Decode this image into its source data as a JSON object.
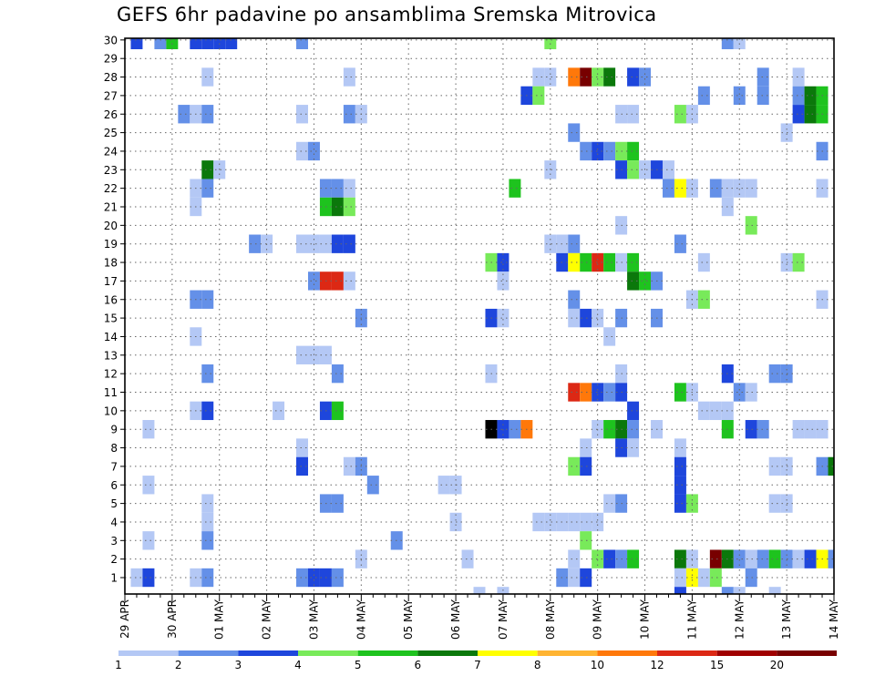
{
  "chart_data": {
    "type": "heatmap",
    "title": "GEFS 6hr padavine po ansamblima Sremska Mitrovica",
    "x_ticks": [
      "29 APR",
      "30 APR",
      "01 MAY",
      "02 MAY",
      "03 MAY",
      "04 MAY",
      "05 MAY",
      "06 MAY",
      "07 MAY",
      "08 MAY",
      "09 MAY",
      "10 MAY",
      "11 MAY",
      "12 MAY",
      "13 MAY",
      "14 MAY"
    ],
    "y_ticks": [
      "1",
      "2",
      "3",
      "4",
      "5",
      "6",
      "7",
      "8",
      "9",
      "10",
      "11",
      "12",
      "13",
      "14",
      "15",
      "16",
      "17",
      "18",
      "19",
      "20",
      "21",
      "22",
      "23",
      "24",
      "25",
      "26",
      "27",
      "28",
      "29",
      "30"
    ],
    "x_unit": "6h step from 29 APR 00Z",
    "xlim": [
      0,
      60
    ],
    "ylim": [
      1,
      30
    ],
    "grid": true,
    "colorbar": {
      "labels": [
        "1",
        "2",
        "3",
        "4",
        "5",
        "6",
        "7",
        "8",
        "10",
        "12",
        "15",
        "20"
      ],
      "colors": [
        "#b4c8f5",
        "#6490e8",
        "#1e46dc",
        "#78ea5a",
        "#1ec31e",
        "#0b780b",
        "#ffff00",
        "#ffb432",
        "#ff780a",
        "#dc2814",
        "#a00000",
        "#780000"
      ]
    },
    "cells": [
      [
        1,
        30,
        3
      ],
      [
        3,
        30,
        2
      ],
      [
        4,
        30,
        5
      ],
      [
        6,
        30,
        3
      ],
      [
        7,
        30,
        3
      ],
      [
        8,
        30,
        3
      ],
      [
        9,
        30,
        3
      ],
      [
        15,
        30,
        2
      ],
      [
        36,
        30,
        4
      ],
      [
        51,
        30,
        2
      ],
      [
        52,
        30,
        1
      ],
      [
        7,
        28,
        1
      ],
      [
        19,
        28,
        1
      ],
      [
        35,
        28,
        1
      ],
      [
        36,
        28,
        1
      ],
      [
        38,
        28,
        9
      ],
      [
        39,
        28,
        12
      ],
      [
        40,
        28,
        4
      ],
      [
        41,
        28,
        6
      ],
      [
        43,
        28,
        3
      ],
      [
        44,
        28,
        2
      ],
      [
        54,
        28,
        2
      ],
      [
        57,
        28,
        1
      ],
      [
        34,
        27,
        3
      ],
      [
        35,
        27,
        4
      ],
      [
        49,
        27,
        2
      ],
      [
        52,
        27,
        2
      ],
      [
        54,
        27,
        2
      ],
      [
        57,
        27,
        2
      ],
      [
        58,
        27,
        6
      ],
      [
        59,
        27,
        5
      ],
      [
        5,
        26,
        2
      ],
      [
        6,
        26,
        1
      ],
      [
        7,
        26,
        2
      ],
      [
        15,
        26,
        1
      ],
      [
        19,
        26,
        2
      ],
      [
        20,
        26,
        1
      ],
      [
        42,
        26,
        1
      ],
      [
        43,
        26,
        1
      ],
      [
        47,
        26,
        4
      ],
      [
        48,
        26,
        1
      ],
      [
        57,
        26,
        3
      ],
      [
        58,
        26,
        6
      ],
      [
        59,
        26,
        5
      ],
      [
        38,
        25,
        2
      ],
      [
        56,
        25,
        1
      ],
      [
        15,
        24,
        1
      ],
      [
        16,
        24,
        2
      ],
      [
        39,
        24,
        2
      ],
      [
        40,
        24,
        3
      ],
      [
        41,
        24,
        2
      ],
      [
        42,
        24,
        4
      ],
      [
        43,
        24,
        5
      ],
      [
        59,
        24,
        2
      ],
      [
        7,
        23,
        6
      ],
      [
        8,
        23,
        1
      ],
      [
        36,
        23,
        1
      ],
      [
        42,
        23,
        3
      ],
      [
        43,
        23,
        4
      ],
      [
        44,
        23,
        1
      ],
      [
        45,
        23,
        3
      ],
      [
        46,
        23,
        1
      ],
      [
        6,
        22,
        1
      ],
      [
        7,
        22,
        2
      ],
      [
        17,
        22,
        2
      ],
      [
        18,
        22,
        2
      ],
      [
        19,
        22,
        1
      ],
      [
        33,
        22,
        5
      ],
      [
        46,
        22,
        2
      ],
      [
        47,
        22,
        7
      ],
      [
        48,
        22,
        1
      ],
      [
        50,
        22,
        2
      ],
      [
        51,
        22,
        1
      ],
      [
        52,
        22,
        1
      ],
      [
        53,
        22,
        1
      ],
      [
        59,
        22,
        1
      ],
      [
        6,
        21,
        1
      ],
      [
        17,
        21,
        5
      ],
      [
        18,
        21,
        6
      ],
      [
        19,
        21,
        4
      ],
      [
        51,
        21,
        1
      ],
      [
        42,
        20,
        1
      ],
      [
        53,
        20,
        4
      ],
      [
        11,
        19,
        2
      ],
      [
        12,
        19,
        1
      ],
      [
        15,
        19,
        1
      ],
      [
        16,
        19,
        1
      ],
      [
        17,
        19,
        1
      ],
      [
        18,
        19,
        3
      ],
      [
        19,
        19,
        3
      ],
      [
        36,
        19,
        1
      ],
      [
        37,
        19,
        1
      ],
      [
        38,
        19,
        2
      ],
      [
        47,
        19,
        2
      ],
      [
        31,
        18,
        4
      ],
      [
        32,
        18,
        3
      ],
      [
        37,
        18,
        3
      ],
      [
        38,
        18,
        7
      ],
      [
        39,
        18,
        5
      ],
      [
        40,
        18,
        10
      ],
      [
        41,
        18,
        5
      ],
      [
        42,
        18,
        1
      ],
      [
        43,
        18,
        5
      ],
      [
        49,
        18,
        1
      ],
      [
        56,
        18,
        1
      ],
      [
        57,
        18,
        4
      ],
      [
        16,
        17,
        2
      ],
      [
        17,
        17,
        10
      ],
      [
        18,
        17,
        10
      ],
      [
        19,
        17,
        1
      ],
      [
        32,
        17,
        1
      ],
      [
        43,
        17,
        6
      ],
      [
        44,
        17,
        5
      ],
      [
        45,
        17,
        2
      ],
      [
        6,
        16,
        2
      ],
      [
        7,
        16,
        2
      ],
      [
        38,
        16,
        2
      ],
      [
        48,
        16,
        1
      ],
      [
        49,
        16,
        4
      ],
      [
        59,
        16,
        1
      ],
      [
        20,
        15,
        2
      ],
      [
        31,
        15,
        3
      ],
      [
        32,
        15,
        1
      ],
      [
        38,
        15,
        1
      ],
      [
        39,
        15,
        3
      ],
      [
        40,
        15,
        1
      ],
      [
        42,
        15,
        2
      ],
      [
        45,
        15,
        2
      ],
      [
        6,
        14,
        1
      ],
      [
        41,
        14,
        1
      ],
      [
        15,
        13,
        1
      ],
      [
        16,
        13,
        1
      ],
      [
        17,
        13,
        1
      ],
      [
        7,
        12,
        2
      ],
      [
        18,
        12,
        2
      ],
      [
        31,
        12,
        1
      ],
      [
        42,
        12,
        1
      ],
      [
        51,
        12,
        3
      ],
      [
        55,
        12,
        2
      ],
      [
        56,
        12,
        2
      ],
      [
        38,
        11,
        10
      ],
      [
        39,
        11,
        9
      ],
      [
        40,
        11,
        3
      ],
      [
        41,
        11,
        2
      ],
      [
        42,
        11,
        3
      ],
      [
        47,
        11,
        5
      ],
      [
        48,
        11,
        1
      ],
      [
        52,
        11,
        2
      ],
      [
        53,
        11,
        1
      ],
      [
        6,
        10,
        1
      ],
      [
        7,
        10,
        3
      ],
      [
        13,
        10,
        1
      ],
      [
        17,
        10,
        3
      ],
      [
        18,
        10,
        5
      ],
      [
        43,
        10,
        3
      ],
      [
        49,
        10,
        1
      ],
      [
        50,
        10,
        1
      ],
      [
        51,
        10,
        1
      ],
      [
        2,
        9,
        1
      ],
      [
        31,
        9,
        13
      ],
      [
        32,
        9,
        3
      ],
      [
        33,
        9,
        2
      ],
      [
        34,
        9,
        9
      ],
      [
        40,
        9,
        1
      ],
      [
        41,
        9,
        5
      ],
      [
        42,
        9,
        6
      ],
      [
        43,
        9,
        2
      ],
      [
        45,
        9,
        1
      ],
      [
        51,
        9,
        5
      ],
      [
        53,
        9,
        3
      ],
      [
        54,
        9,
        2
      ],
      [
        57,
        9,
        1
      ],
      [
        58,
        9,
        1
      ],
      [
        59,
        9,
        1
      ],
      [
        15,
        8,
        1
      ],
      [
        39,
        8,
        1
      ],
      [
        42,
        8,
        3
      ],
      [
        43,
        8,
        1
      ],
      [
        47,
        8,
        1
      ],
      [
        15,
        7,
        3
      ],
      [
        19,
        7,
        1
      ],
      [
        20,
        7,
        2
      ],
      [
        38,
        7,
        4
      ],
      [
        39,
        7,
        3
      ],
      [
        47,
        7,
        3
      ],
      [
        55,
        7,
        1
      ],
      [
        56,
        7,
        1
      ],
      [
        59,
        7,
        2
      ],
      [
        60,
        7,
        6
      ],
      [
        2,
        6,
        1
      ],
      [
        21,
        6,
        2
      ],
      [
        27,
        6,
        1
      ],
      [
        28,
        6,
        1
      ],
      [
        47,
        6,
        3
      ],
      [
        7,
        5,
        1
      ],
      [
        17,
        5,
        2
      ],
      [
        18,
        5,
        2
      ],
      [
        41,
        5,
        1
      ],
      [
        42,
        5,
        2
      ],
      [
        47,
        5,
        3
      ],
      [
        48,
        5,
        4
      ],
      [
        55,
        5,
        1
      ],
      [
        56,
        5,
        1
      ],
      [
        7,
        4,
        1
      ],
      [
        28,
        4,
        1
      ],
      [
        35,
        4,
        1
      ],
      [
        36,
        4,
        1
      ],
      [
        37,
        4,
        1
      ],
      [
        38,
        4,
        1
      ],
      [
        39,
        4,
        1
      ],
      [
        40,
        4,
        1
      ],
      [
        2,
        3,
        1
      ],
      [
        7,
        3,
        2
      ],
      [
        23,
        3,
        2
      ],
      [
        39,
        3,
        4
      ],
      [
        20,
        2,
        1
      ],
      [
        29,
        2,
        1
      ],
      [
        38,
        2,
        1
      ],
      [
        40,
        2,
        4
      ],
      [
        41,
        2,
        3
      ],
      [
        42,
        2,
        2
      ],
      [
        43,
        2,
        5
      ],
      [
        47,
        2,
        6
      ],
      [
        48,
        2,
        1
      ],
      [
        50,
        2,
        12
      ],
      [
        51,
        2,
        6
      ],
      [
        52,
        2,
        2
      ],
      [
        53,
        2,
        1
      ],
      [
        54,
        2,
        2
      ],
      [
        55,
        2,
        5
      ],
      [
        56,
        2,
        2
      ],
      [
        57,
        2,
        1
      ],
      [
        58,
        2,
        3
      ],
      [
        59,
        2,
        7
      ],
      [
        60,
        2,
        2
      ],
      [
        1,
        1,
        1
      ],
      [
        2,
        1,
        3
      ],
      [
        6,
        1,
        1
      ],
      [
        7,
        1,
        2
      ],
      [
        15,
        1,
        2
      ],
      [
        16,
        1,
        3
      ],
      [
        17,
        1,
        3
      ],
      [
        18,
        1,
        2
      ],
      [
        37,
        1,
        2
      ],
      [
        38,
        1,
        1
      ],
      [
        39,
        1,
        3
      ],
      [
        47,
        1,
        1
      ],
      [
        48,
        1,
        7
      ],
      [
        49,
        1,
        1
      ],
      [
        50,
        1,
        4
      ],
      [
        53,
        1,
        2
      ],
      [
        30,
        0,
        1
      ],
      [
        32,
        0,
        1
      ],
      [
        47,
        0,
        3
      ],
      [
        51,
        0,
        2
      ],
      [
        52,
        0,
        1
      ],
      [
        55,
        0,
        1
      ]
    ]
  }
}
